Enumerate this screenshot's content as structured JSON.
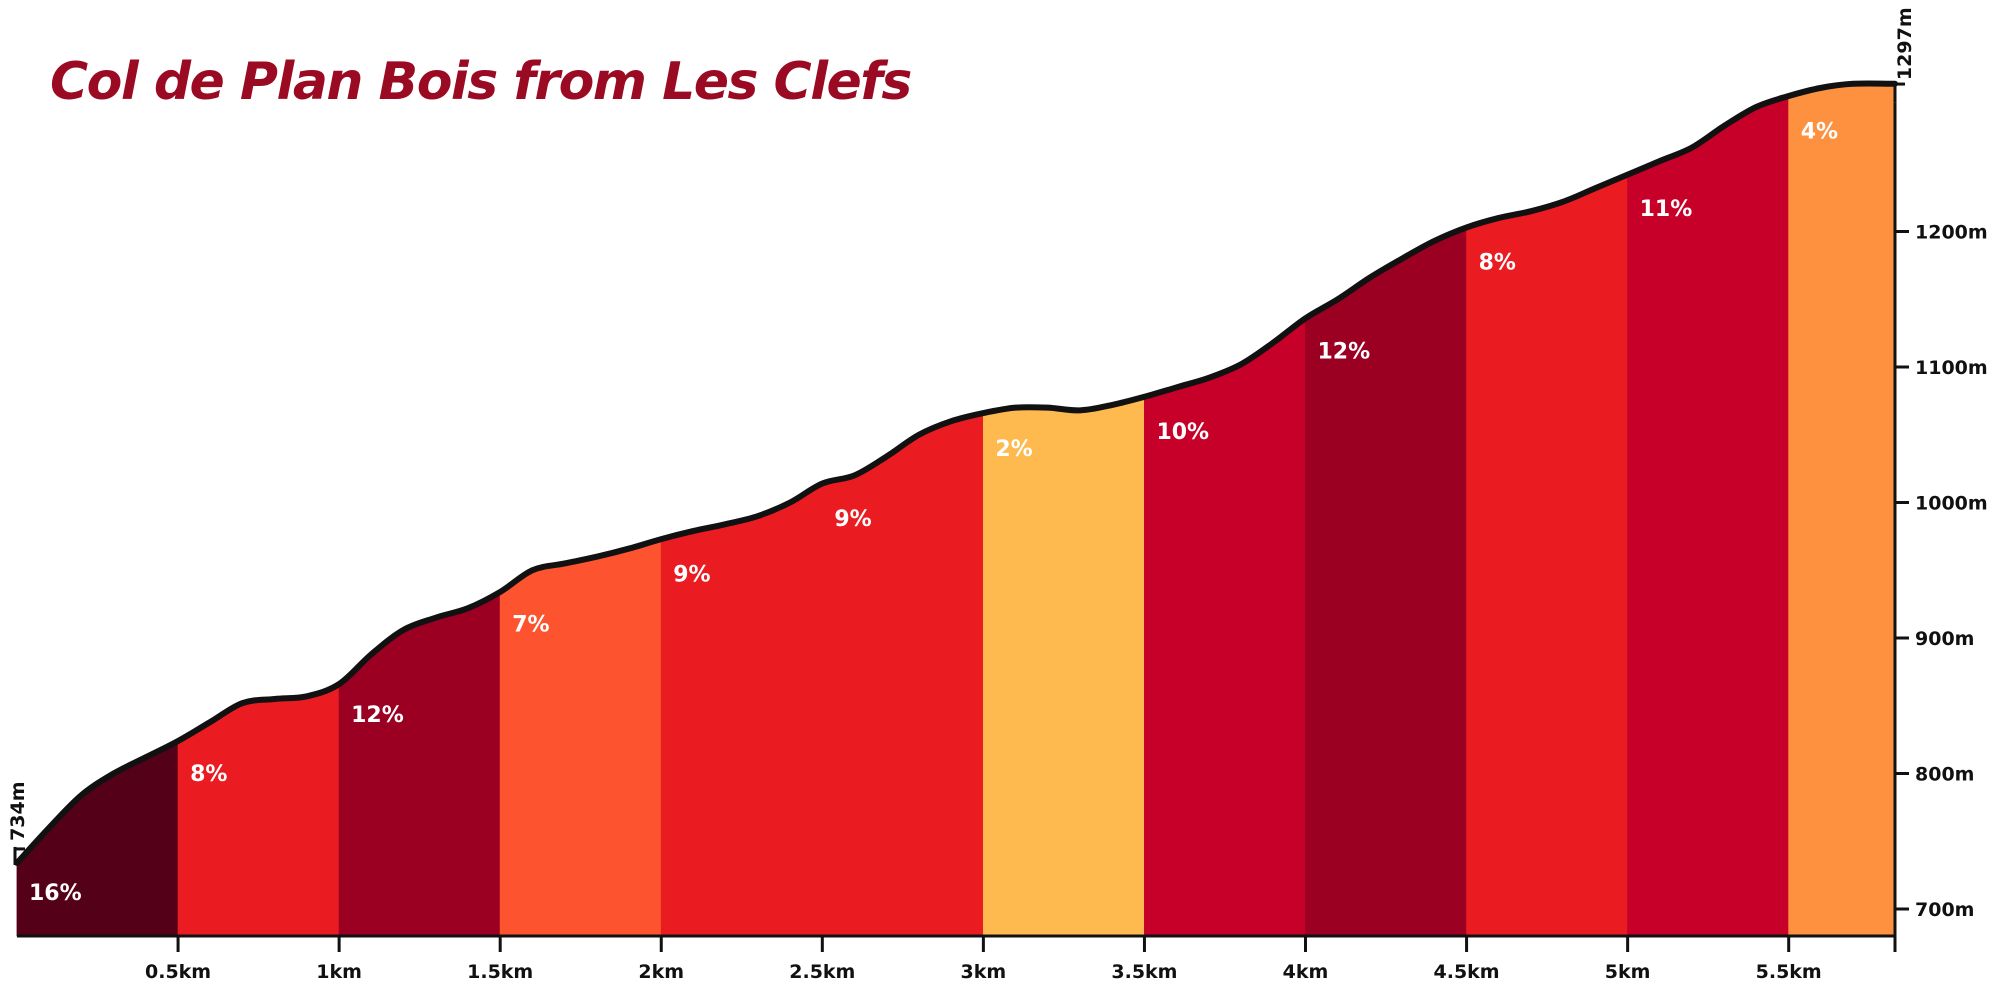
{
  "chart_data": {
    "type": "area",
    "title": "Col de Plan Bois from Les Clefs",
    "xlabel": "",
    "ylabel": "",
    "x_unit": "km",
    "y_unit": "m",
    "xlim": [
      0,
      5.83
    ],
    "ylim": [
      675,
      1320
    ],
    "grid": false,
    "legend": "none",
    "x_tick_labels": [
      "0.5km",
      "1km",
      "1.5km",
      "2km",
      "2.5km",
      "3km",
      "3.5km",
      "4km",
      "4.5km",
      "5km",
      "5.5km"
    ],
    "x_tick_values": [
      0.5,
      1,
      1.5,
      2,
      2.5,
      3,
      3.5,
      4,
      4.5,
      5,
      5.5
    ],
    "y_tick_labels": [
      "700m",
      "800m",
      "900m",
      "1000m",
      "1100m",
      "1200m"
    ],
    "y_tick_values": [
      700,
      800,
      900,
      1000,
      1100,
      1200
    ],
    "start_elevation_label": "734m",
    "start_elevation": 734,
    "end_elevation_label": "1297m",
    "end_elevation": 1297,
    "segments": [
      {
        "start": 0.0,
        "end": 0.5,
        "grade_label": "16%",
        "color": "#540018"
      },
      {
        "start": 0.5,
        "end": 1.0,
        "grade_label": "8%",
        "color": "#ea1c21"
      },
      {
        "start": 1.0,
        "end": 1.5,
        "grade_label": "12%",
        "color": "#9b0023"
      },
      {
        "start": 1.5,
        "end": 2.0,
        "grade_label": "7%",
        "color": "#fd532f"
      },
      {
        "start": 2.0,
        "end": 3.0,
        "grade_label": "9%",
        "color": "#ea1c21",
        "extra_label": "9%"
      },
      {
        "start": 3.0,
        "end": 3.5,
        "grade_label": "2%",
        "color": "#feb94f"
      },
      {
        "start": 3.5,
        "end": 4.0,
        "grade_label": "10%",
        "color": "#c60028"
      },
      {
        "start": 4.0,
        "end": 4.5,
        "grade_label": "12%",
        "color": "#9b0023"
      },
      {
        "start": 4.5,
        "end": 5.0,
        "grade_label": "8%",
        "color": "#ea1c21"
      },
      {
        "start": 5.0,
        "end": 5.5,
        "grade_label": "11%",
        "color": "#c60028"
      },
      {
        "start": 5.5,
        "end": 5.83,
        "grade_label": "4%",
        "color": "#fd9140"
      }
    ],
    "profile": [
      [
        0.0,
        734
      ],
      [
        0.1,
        760
      ],
      [
        0.2,
        784
      ],
      [
        0.3,
        800
      ],
      [
        0.4,
        812
      ],
      [
        0.5,
        824
      ],
      [
        0.6,
        838
      ],
      [
        0.7,
        852
      ],
      [
        0.8,
        855
      ],
      [
        0.9,
        857
      ],
      [
        1.0,
        866
      ],
      [
        1.1,
        888
      ],
      [
        1.2,
        906
      ],
      [
        1.3,
        915
      ],
      [
        1.4,
        922
      ],
      [
        1.5,
        934
      ],
      [
        1.6,
        950
      ],
      [
        1.7,
        955
      ],
      [
        1.8,
        960
      ],
      [
        1.9,
        966
      ],
      [
        2.0,
        973
      ],
      [
        2.1,
        979
      ],
      [
        2.2,
        984
      ],
      [
        2.3,
        990
      ],
      [
        2.4,
        1000
      ],
      [
        2.5,
        1014
      ],
      [
        2.6,
        1020
      ],
      [
        2.7,
        1034
      ],
      [
        2.8,
        1050
      ],
      [
        2.9,
        1060
      ],
      [
        3.0,
        1066
      ],
      [
        3.1,
        1070
      ],
      [
        3.2,
        1070
      ],
      [
        3.3,
        1068
      ],
      [
        3.4,
        1072
      ],
      [
        3.5,
        1078
      ],
      [
        3.6,
        1085
      ],
      [
        3.7,
        1092
      ],
      [
        3.8,
        1102
      ],
      [
        3.9,
        1118
      ],
      [
        4.0,
        1136
      ],
      [
        4.1,
        1150
      ],
      [
        4.2,
        1166
      ],
      [
        4.3,
        1180
      ],
      [
        4.4,
        1193
      ],
      [
        4.5,
        1203
      ],
      [
        4.6,
        1210
      ],
      [
        4.7,
        1215
      ],
      [
        4.8,
        1222
      ],
      [
        4.9,
        1232
      ],
      [
        5.0,
        1242
      ],
      [
        5.1,
        1252
      ],
      [
        5.2,
        1262
      ],
      [
        5.3,
        1278
      ],
      [
        5.4,
        1292
      ],
      [
        5.5,
        1300
      ],
      [
        5.6,
        1306
      ],
      [
        5.7,
        1309
      ],
      [
        5.83,
        1309
      ]
    ]
  }
}
